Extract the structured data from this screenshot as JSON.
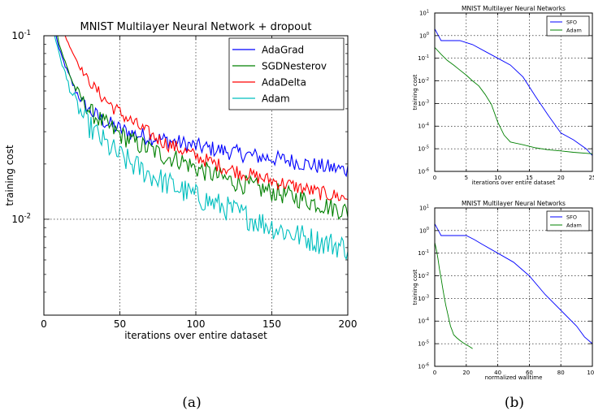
{
  "captions": {
    "left": "(a)",
    "right": "(b)"
  },
  "chart_data": [
    {
      "type": "line",
      "title": "MNIST Multilayer Neural Network + dropout",
      "xlabel": "iterations over entire dataset",
      "ylabel": "training cost",
      "xlim": [
        0,
        200
      ],
      "ylim": [
        0.003,
        0.1
      ],
      "yscale": "log",
      "grid": true,
      "legend": "top-right",
      "xticks": [
        "0",
        "50",
        "100",
        "150",
        "200"
      ],
      "yticks": [
        {
          "base": "10",
          "exp": "-2",
          "value": 0.01
        },
        {
          "base": "10",
          "exp": "-1",
          "value": 0.1
        }
      ],
      "series": [
        {
          "name": "AdaGrad",
          "color": "#0000ff",
          "noise": 0.045,
          "x": [
            8,
            10,
            15,
            20,
            25,
            30,
            40,
            50,
            60,
            70,
            80,
            90,
            100,
            120,
            140,
            160,
            180,
            200
          ],
          "y": [
            0.1,
            0.085,
            0.065,
            0.052,
            0.044,
            0.039,
            0.034,
            0.031,
            0.029,
            0.028,
            0.027,
            0.026,
            0.025,
            0.0235,
            0.022,
            0.021,
            0.0195,
            0.0185
          ]
        },
        {
          "name": "SGDNesterov",
          "color": "#008000",
          "noise": 0.055,
          "x": [
            9,
            10,
            15,
            20,
            25,
            30,
            40,
            50,
            60,
            70,
            80,
            90,
            100,
            120,
            140,
            160,
            180,
            200
          ],
          "y": [
            0.1,
            0.09,
            0.068,
            0.053,
            0.045,
            0.039,
            0.033,
            0.029,
            0.026,
            0.024,
            0.022,
            0.021,
            0.019,
            0.0165,
            0.0148,
            0.0135,
            0.0122,
            0.011
          ]
        },
        {
          "name": "AdaDelta",
          "color": "#ff0000",
          "noise": 0.04,
          "x": [
            14,
            15,
            20,
            25,
            30,
            40,
            50,
            60,
            70,
            80,
            90,
            100,
            120,
            140,
            160,
            180,
            200
          ],
          "y": [
            0.1,
            0.095,
            0.078,
            0.065,
            0.056,
            0.045,
            0.038,
            0.033,
            0.029,
            0.026,
            0.024,
            0.022,
            0.019,
            0.017,
            0.0155,
            0.014,
            0.013
          ]
        },
        {
          "name": "Adam",
          "color": "#00bfbf",
          "noise": 0.07,
          "x": [
            7,
            10,
            15,
            20,
            25,
            30,
            40,
            50,
            60,
            70,
            80,
            90,
            100,
            120,
            140,
            160,
            180,
            200
          ],
          "y": [
            0.1,
            0.08,
            0.058,
            0.045,
            0.037,
            0.032,
            0.026,
            0.022,
            0.0195,
            0.0175,
            0.0158,
            0.0145,
            0.0133,
            0.0115,
            0.0098,
            0.0085,
            0.0076,
            0.007
          ]
        }
      ]
    },
    {
      "type": "line",
      "title": "MNIST Multilayer Neural Networks",
      "xlabel": "iterations over entire dataset",
      "ylabel": "training cost",
      "xlim": [
        0,
        25
      ],
      "ylim": [
        1e-06,
        10
      ],
      "yscale": "log",
      "grid": true,
      "legend": "top-right",
      "xticks": [
        "0",
        "5",
        "10",
        "15",
        "20",
        "25"
      ],
      "yticks": [
        {
          "base": "10",
          "exp": "-6",
          "value": 1e-06
        },
        {
          "base": "10",
          "exp": "-5",
          "value": 1e-05
        },
        {
          "base": "10",
          "exp": "-4",
          "value": 0.0001
        },
        {
          "base": "10",
          "exp": "-3",
          "value": 0.001
        },
        {
          "base": "10",
          "exp": "-2",
          "value": 0.01
        },
        {
          "base": "10",
          "exp": "-1",
          "value": 0.1
        },
        {
          "base": "10",
          "exp": "0",
          "value": 1
        },
        {
          "base": "10",
          "exp": "1",
          "value": 10
        }
      ],
      "series": [
        {
          "name": "SFO",
          "color": "#0000ff",
          "noise": 0,
          "x": [
            0,
            0.5,
            1,
            2,
            4,
            6,
            8,
            10,
            12,
            14,
            16,
            18,
            20,
            22,
            24,
            25
          ],
          "y": [
            2,
            1.1,
            0.6,
            0.6,
            0.6,
            0.4,
            0.2,
            0.1,
            0.05,
            0.015,
            0.002,
            0.0003,
            5e-05,
            2.5e-05,
            1e-05,
            5e-06
          ]
        },
        {
          "name": "Adam",
          "color": "#008000",
          "noise": 0,
          "x": [
            0,
            1,
            2,
            3,
            4,
            5,
            6,
            7,
            8,
            9,
            10,
            11,
            12,
            14,
            16,
            18,
            20,
            22,
            25
          ],
          "y": [
            0.3,
            0.15,
            0.08,
            0.05,
            0.03,
            0.018,
            0.01,
            0.006,
            0.0025,
            0.0009,
            0.00015,
            4e-05,
            2e-05,
            1.5e-05,
            1.1e-05,
            9e-06,
            8e-06,
            7e-06,
            6e-06
          ]
        }
      ]
    },
    {
      "type": "line",
      "title": "MNIST Multilayer Neural Networks",
      "xlabel": "normalized walltime",
      "ylabel": "training cost",
      "xlim": [
        0,
        100
      ],
      "ylim": [
        1e-06,
        10
      ],
      "yscale": "log",
      "grid": true,
      "legend": "top-right",
      "xticks": [
        "0",
        "20",
        "40",
        "60",
        "80",
        "100"
      ],
      "yticks": [
        {
          "base": "10",
          "exp": "-6",
          "value": 1e-06
        },
        {
          "base": "10",
          "exp": "-5",
          "value": 1e-05
        },
        {
          "base": "10",
          "exp": "-4",
          "value": 0.0001
        },
        {
          "base": "10",
          "exp": "-3",
          "value": 0.001
        },
        {
          "base": "10",
          "exp": "-2",
          "value": 0.01
        },
        {
          "base": "10",
          "exp": "-1",
          "value": 0.1
        },
        {
          "base": "10",
          "exp": "0",
          "value": 1
        },
        {
          "base": "10",
          "exp": "1",
          "value": 10
        }
      ],
      "series": [
        {
          "name": "SFO",
          "color": "#0000ff",
          "noise": 0,
          "x": [
            0,
            2,
            4,
            10,
            20,
            25,
            30,
            40,
            50,
            60,
            70,
            80,
            90,
            95,
            100
          ],
          "y": [
            2,
            1.1,
            0.6,
            0.6,
            0.6,
            0.4,
            0.25,
            0.1,
            0.04,
            0.01,
            0.0015,
            0.0003,
            6e-05,
            2e-05,
            1e-05
          ]
        },
        {
          "name": "Adam",
          "color": "#008000",
          "noise": 0,
          "x": [
            0,
            1,
            2,
            3,
            4,
            5,
            6,
            7,
            8,
            9,
            10,
            11,
            12,
            14,
            16,
            18,
            20,
            22,
            24
          ],
          "y": [
            0.3,
            0.15,
            0.06,
            0.02,
            0.008,
            0.003,
            0.0012,
            0.0005,
            0.00025,
            0.00012,
            6e-05,
            4e-05,
            2.5e-05,
            1.8e-05,
            1.4e-05,
            1.1e-05,
            9e-06,
            7.5e-06,
            6e-06
          ]
        }
      ]
    }
  ]
}
